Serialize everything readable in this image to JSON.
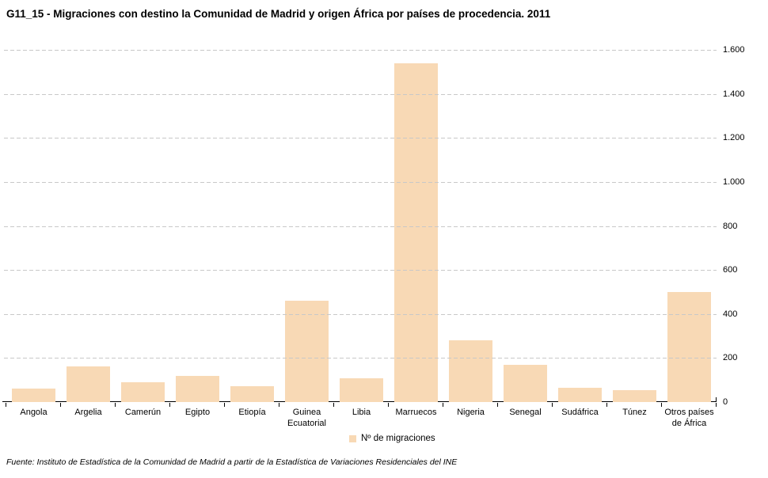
{
  "chart_data": {
    "type": "bar",
    "title": "G11_15 - Migraciones con destino la Comunidad de Madrid y origen África por países de procedencia. 2011",
    "legend": "Nº de migraciones",
    "categories": [
      "Angola",
      "Argelia",
      "Camerún",
      "Egipto",
      "Etiopía",
      "Guinea\nEcuatorial",
      "Libia",
      "Marruecos",
      "Nigeria",
      "Senegal",
      "Sudáfrica",
      "Túnez",
      "Otros países\nde África"
    ],
    "values": [
      62,
      162,
      90,
      120,
      73,
      460,
      108,
      1540,
      280,
      168,
      63,
      54,
      500
    ],
    "xlabel": "",
    "ylabel": "",
    "ylim": [
      0,
      1600
    ],
    "y_ticks": [
      0,
      200,
      400,
      600,
      800,
      1000,
      1200,
      1400,
      1600
    ],
    "y_tick_labels": [
      "0",
      "200",
      "400",
      "600",
      "800",
      "1.000",
      "1.200",
      "1.400",
      "1.600"
    ],
    "grid": "horizontal-dashed",
    "legend_position": "bottom-center",
    "bar_color": "#f8d9b5",
    "gridline_color": "#c8c8c8",
    "axis_color": "#000000"
  },
  "footer": {
    "source": "Fuente: Instituto de Estadística de la Comunidad de Madrid a partir de la Estadística de Variaciones Residenciales del INE"
  }
}
